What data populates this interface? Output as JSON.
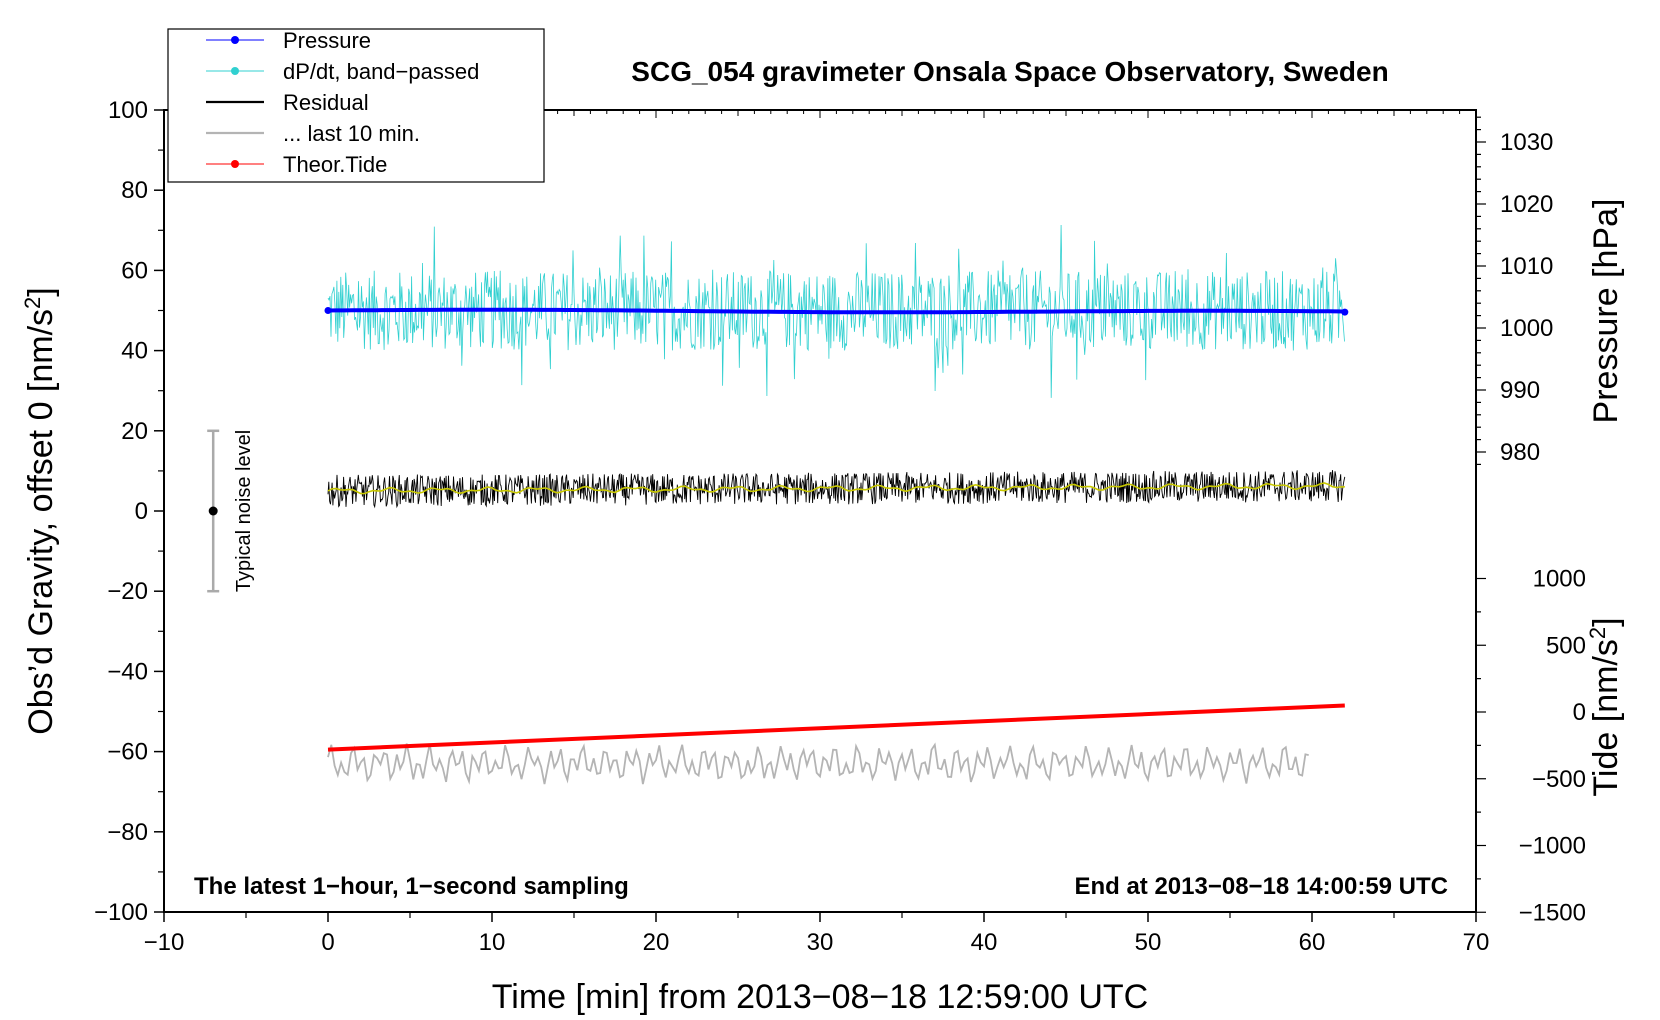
{
  "chart_data": {
    "type": "line",
    "title": "SCG_054 gravimeter Onsala Space Observatory, Sweden",
    "xlabel": "Time [min] from 2013−08−18 12:59:00 UTC",
    "ylabel": "Obs’d Gravity, offset 0 [nm/s²]",
    "ylabel_parts": {
      "main": "Obs’d Gravity, offset 0 [nm/s",
      "sup": "2",
      "end": "]"
    },
    "xlim": [
      -10,
      70
    ],
    "ylim": [
      -100,
      100
    ],
    "x_ticks": [
      -10,
      0,
      10,
      20,
      30,
      40,
      50,
      60,
      70
    ],
    "x_tick_labels": [
      "−10",
      "0",
      "10",
      "20",
      "30",
      "40",
      "50",
      "60",
      "70"
    ],
    "y_ticks": [
      -100,
      -80,
      -60,
      -40,
      -20,
      0,
      20,
      40,
      60,
      80,
      100
    ],
    "y_tick_labels": [
      "−100",
      "−80",
      "−60",
      "−40",
      "−20",
      "0",
      "20",
      "40",
      "60",
      "80",
      "100"
    ],
    "right_axis_pressure": {
      "label": "Pressure [hPa]",
      "ticks": [
        980,
        990,
        1000,
        1010,
        1020,
        1030
      ],
      "tick_labels": [
        "980",
        "990",
        "1000",
        "1010",
        "1020",
        "1030"
      ]
    },
    "right_axis_tide": {
      "label_main": "Tide [nm/s",
      "label_sup": "2",
      "label_end": "]",
      "ticks": [
        -1500,
        -1000,
        -500,
        0,
        500,
        1000
      ],
      "tick_labels": [
        "−1500",
        "−1000",
        "−500",
        "0",
        "500",
        "1000"
      ]
    },
    "series": [
      {
        "name": "Pressure",
        "color": "#0000ff",
        "x_range": [
          0,
          62
        ],
        "level": 50
      },
      {
        "name": "dP/dt, band−passed",
        "color": "#30d0d0",
        "x_range": [
          0,
          62
        ],
        "level": 50,
        "amplitude": 10
      },
      {
        "name": "Residual",
        "color": "#000000",
        "x_range": [
          0,
          62
        ],
        "level": 5,
        "amplitude": 4
      },
      {
        "name": "... last 10 min.",
        "color": "#b4b4b4",
        "x_range": [
          0,
          60
        ],
        "level": -63,
        "amplitude": 4
      },
      {
        "name": "Theor.Tide",
        "color": "#ff0000",
        "x": [
          0,
          62
        ],
        "y": [
          -59.5,
          -48.5
        ]
      }
    ],
    "smoothed_residual_color": "#c8c800",
    "noise_bar": {
      "label": "Typical noise level",
      "x": -7,
      "y_center": 0,
      "y_low": -20,
      "y_high": 20
    },
    "note_left": "The latest 1−hour, 1−second sampling",
    "note_right": "End at 2013−08−18 14:00:59 UTC"
  }
}
